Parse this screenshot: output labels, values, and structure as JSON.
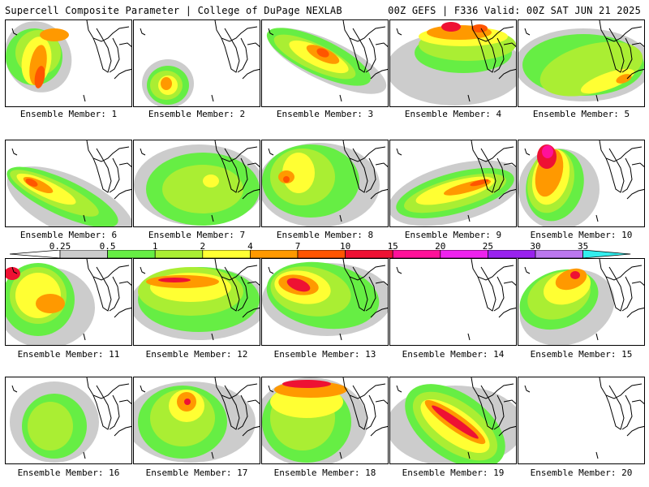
{
  "header": {
    "left_title": "Supercell Composite Parameter | College of DuPage NEXLAB",
    "right_title": "00Z GEFS | F336 Valid: 00Z SAT JUN 21 2025"
  },
  "colorbar": {
    "labels": [
      "0.25",
      "0.5",
      "1",
      "2",
      "4",
      "7",
      "10",
      "15",
      "20",
      "25",
      "30",
      "35"
    ],
    "colors": [
      "#cccccc",
      "#66ee44",
      "#aaee33",
      "#ffff33",
      "#ff9900",
      "#ff5500",
      "#ee1133",
      "#ff1199",
      "#ee22ee",
      "#9922ee",
      "#bb77ee",
      "#33eeee"
    ]
  },
  "panels": [
    {
      "label": "Ensemble Member: 1"
    },
    {
      "label": "Ensemble Member: 2"
    },
    {
      "label": "Ensemble Member: 3"
    },
    {
      "label": "Ensemble Member: 4"
    },
    {
      "label": "Ensemble Member: 5"
    },
    {
      "label": "Ensemble Member: 6"
    },
    {
      "label": "Ensemble Member: 7"
    },
    {
      "label": "Ensemble Member: 8"
    },
    {
      "label": "Ensemble Member: 9"
    },
    {
      "label": "Ensemble Member: 10"
    },
    {
      "label": "Ensemble Member: 11"
    },
    {
      "label": "Ensemble Member: 12"
    },
    {
      "label": "Ensemble Member: 13"
    },
    {
      "label": "Ensemble Member: 14"
    },
    {
      "label": "Ensemble Member: 15"
    },
    {
      "label": "Ensemble Member: 16"
    },
    {
      "label": "Ensemble Member: 17"
    },
    {
      "label": "Ensemble Member: 18"
    },
    {
      "label": "Ensemble Member: 19"
    },
    {
      "label": "Ensemble Member: 20"
    }
  ]
}
